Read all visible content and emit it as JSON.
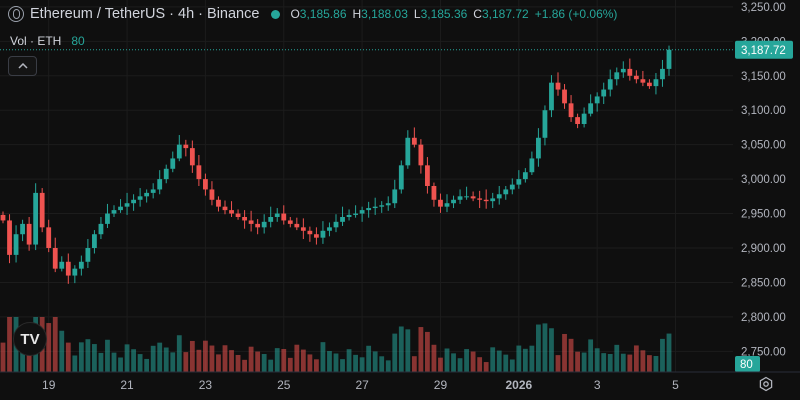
{
  "header": {
    "title": "Ethereum / TetherUS · 4h · Binance",
    "market_status_color": "#26a69a",
    "ohlc": [
      {
        "label": "O",
        "value": "3,185.86"
      },
      {
        "label": "H",
        "value": "3,188.03"
      },
      {
        "label": "L",
        "value": "3,185.36"
      },
      {
        "label": "C",
        "value": "3,187.72"
      }
    ],
    "change": "+1.86 (+0.06%)"
  },
  "volume_legend": {
    "label": "Vol · ETH",
    "value": "80"
  },
  "collapse_icon": "chevron-up-icon",
  "logo_text": "TV",
  "settings_icon": "gear-icon",
  "colors": {
    "up": "#26a69a",
    "down": "#ef5350",
    "background": "#0f0f0f",
    "text": "#d1d4dc",
    "price_label_bg": "#26a69a"
  },
  "chart_data": {
    "type": "candlestick",
    "symbol": "ETHUSDT",
    "interval": "4h",
    "ylim": [
      2720,
      3260
    ],
    "yticks": [
      "3,250.00",
      "3,200.00",
      "3,150.00",
      "3,100.00",
      "3,050.00",
      "3,000.00",
      "2,950.00",
      "2,900.00",
      "2,850.00",
      "2,800.00",
      "2,750.00"
    ],
    "ytick_values": [
      3250,
      3200,
      3150,
      3100,
      3050,
      3000,
      2950,
      2900,
      2850,
      2800,
      2750
    ],
    "xticks": [
      {
        "label": "19",
        "index": 7
      },
      {
        "label": "21",
        "index": 19
      },
      {
        "label": "23",
        "index": 31
      },
      {
        "label": "25",
        "index": 43
      },
      {
        "label": "27",
        "index": 55
      },
      {
        "label": "29",
        "index": 67
      },
      {
        "label": "2026",
        "index": 79
      },
      {
        "label": "3",
        "index": 91
      },
      {
        "label": "5",
        "index": 103
      }
    ],
    "last_price": "3,187.72",
    "last_price_value": 3187.72,
    "last_volume": "80",
    "close": [
      2940,
      2890,
      2920,
      2935,
      2905,
      2980,
      2930,
      2900,
      2870,
      2880,
      2860,
      2870,
      2880,
      2900,
      2920,
      2935,
      2950,
      2955,
      2960,
      2965,
      2970,
      2975,
      2980,
      2985,
      3000,
      3015,
      3030,
      3050,
      3045,
      3020,
      3000,
      2985,
      2970,
      2960,
      2955,
      2950,
      2945,
      2940,
      2935,
      2930,
      2938,
      2945,
      2950,
      2940,
      2935,
      2930,
      2925,
      2920,
      2915,
      2925,
      2930,
      2938,
      2945,
      2948,
      2950,
      2955,
      2958,
      2960,
      2962,
      2965,
      2985,
      3020,
      3060,
      3050,
      3020,
      2990,
      2970,
      2960,
      2965,
      2970,
      2975,
      2975,
      2972,
      2970,
      2968,
      2972,
      2978,
      2985,
      2992,
      3000,
      3010,
      3030,
      3060,
      3100,
      3140,
      3130,
      3110,
      3090,
      3080,
      3095,
      3110,
      3120,
      3130,
      3145,
      3155,
      3160,
      3150,
      3145,
      3140,
      3135,
      3145,
      3160,
      3187.72
    ]
  }
}
